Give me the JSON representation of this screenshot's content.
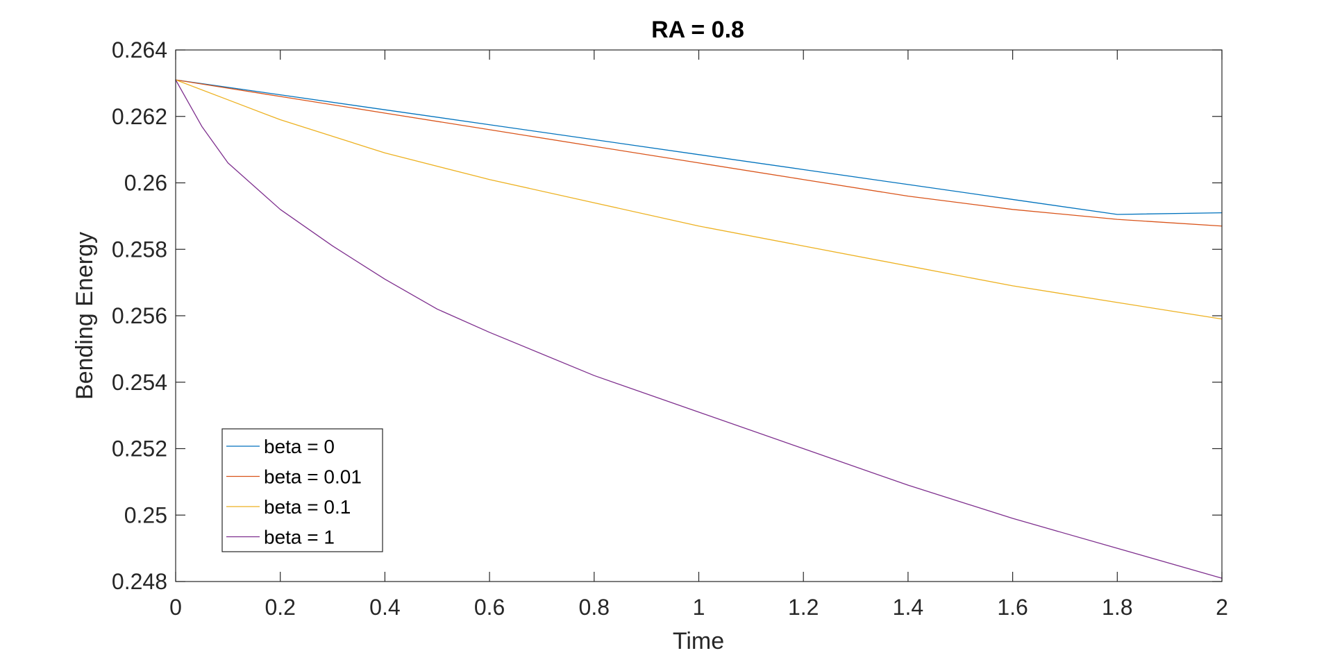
{
  "chart_data": {
    "type": "line",
    "title": "RA = 0.8",
    "xlabel": "Time",
    "ylabel": "Bending Energy",
    "xlim": [
      0,
      2
    ],
    "ylim": [
      0.248,
      0.264
    ],
    "xticks": [
      "0",
      "0.2",
      "0.4",
      "0.6",
      "0.8",
      "1",
      "1.2",
      "1.4",
      "1.6",
      "1.8",
      "2"
    ],
    "yticks": [
      "0.248",
      "0.25",
      "0.252",
      "0.254",
      "0.256",
      "0.258",
      "0.26",
      "0.262",
      "0.264"
    ],
    "grid": false,
    "legend_position": "bottom-left",
    "series": [
      {
        "name": "beta = 0",
        "color": "#0072BD",
        "x": [
          0,
          0.2,
          0.4,
          0.6,
          0.8,
          1.0,
          1.2,
          1.4,
          1.6,
          1.8,
          2.0
        ],
        "y": [
          0.2631,
          0.26265,
          0.2622,
          0.26175,
          0.2613,
          0.26085,
          0.2604,
          0.25995,
          0.2595,
          0.25905,
          0.2591
        ]
      },
      {
        "name": "beta = 0.01",
        "color": "#D95319",
        "x": [
          0,
          0.2,
          0.4,
          0.6,
          0.8,
          1.0,
          1.2,
          1.4,
          1.6,
          1.8,
          2.0
        ],
        "y": [
          0.2631,
          0.2626,
          0.2621,
          0.2616,
          0.2611,
          0.2606,
          0.2601,
          0.2596,
          0.2592,
          0.2589,
          0.2587
        ]
      },
      {
        "name": "beta = 0.1",
        "color": "#EDB120",
        "x": [
          0,
          0.1,
          0.2,
          0.4,
          0.6,
          0.8,
          1.0,
          1.2,
          1.4,
          1.6,
          1.8,
          2.0
        ],
        "y": [
          0.2631,
          0.2625,
          0.2619,
          0.2609,
          0.2601,
          0.2594,
          0.2587,
          0.2581,
          0.2575,
          0.2569,
          0.2564,
          0.2559
        ]
      },
      {
        "name": "beta = 1",
        "color": "#7E2F8E",
        "x": [
          0,
          0.05,
          0.1,
          0.2,
          0.3,
          0.4,
          0.5,
          0.6,
          0.8,
          1.0,
          1.2,
          1.4,
          1.6,
          1.8,
          2.0
        ],
        "y": [
          0.2631,
          0.2617,
          0.2606,
          0.2592,
          0.2581,
          0.2571,
          0.2562,
          0.2555,
          0.2542,
          0.2531,
          0.252,
          0.2509,
          0.2499,
          0.249,
          0.2481
        ]
      }
    ]
  }
}
